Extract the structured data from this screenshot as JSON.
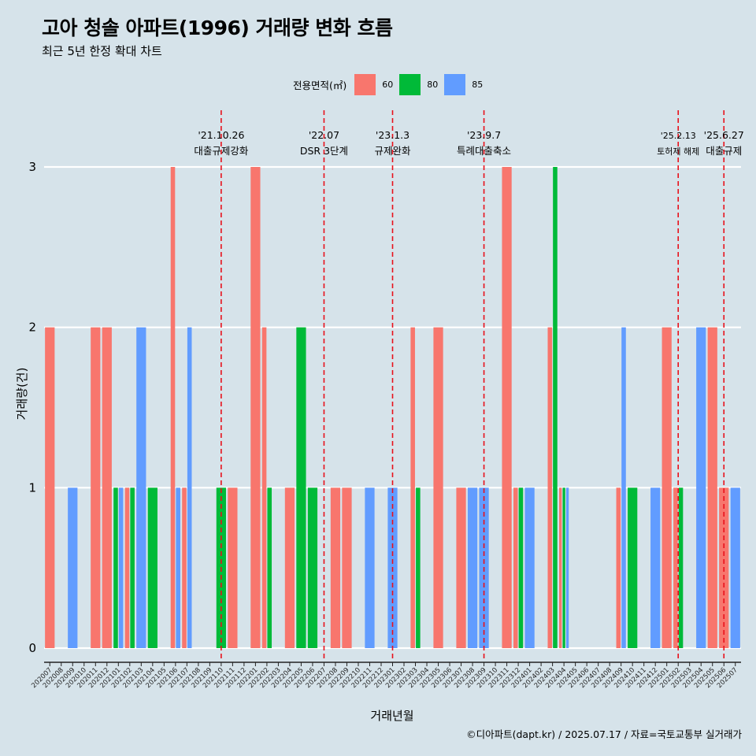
{
  "title": "고아 청솔 아파트(1996) 거래량 변화 흐름",
  "subtitle": "최근 5년 한정 확대 차트",
  "caption": "©디아파트(dapt.kr) / 2025.07.17 / 자료=국토교통부 실거래가",
  "legend": {
    "title": "전용면적(㎡)",
    "items": [
      {
        "label": "60",
        "color": "#f8766d"
      },
      {
        "label": "80",
        "color": "#00ba38"
      },
      {
        "label": "85",
        "color": "#619cff"
      }
    ]
  },
  "chart_data": {
    "type": "bar",
    "xlabel": "거래년월",
    "ylabel": "거래량(건)",
    "ylim": [
      0,
      3
    ],
    "yticks": [
      0,
      1,
      2,
      3
    ],
    "grid": true,
    "categories": [
      "202007",
      "202008",
      "202009",
      "202010",
      "202011",
      "202012",
      "202101",
      "202102",
      "202103",
      "202104",
      "202105",
      "202106",
      "202107",
      "202108",
      "202109",
      "202110",
      "202111",
      "202112",
      "202201",
      "202202",
      "202203",
      "202204",
      "202205",
      "202206",
      "202207",
      "202208",
      "202209",
      "202210",
      "202211",
      "202212",
      "202301",
      "202302",
      "202303",
      "202304",
      "202305",
      "202306",
      "202307",
      "202308",
      "202309",
      "202310",
      "202311",
      "202312",
      "202401",
      "202402",
      "202403",
      "202404",
      "202405",
      "202406",
      "202407",
      "202408",
      "202409",
      "202410",
      "202411",
      "202412",
      "202501",
      "202502",
      "202503",
      "202504",
      "202505",
      "202506",
      "202507"
    ],
    "series": [
      {
        "name": "60",
        "color": "#f8766d",
        "values": [
          2,
          0,
          0,
          0,
          2,
          2,
          0,
          1,
          0,
          0,
          0,
          3,
          1,
          0,
          0,
          0,
          1,
          0,
          3,
          2,
          0,
          1,
          0,
          0,
          0,
          1,
          1,
          0,
          0,
          0,
          0,
          0,
          2,
          0,
          2,
          0,
          1,
          0,
          0,
          0,
          3,
          1,
          0,
          0,
          2,
          1,
          0,
          0,
          0,
          0,
          1,
          0,
          0,
          0,
          2,
          1,
          0,
          0,
          2,
          1,
          0
        ]
      },
      {
        "name": "80",
        "color": "#00ba38",
        "values": [
          0,
          0,
          0,
          0,
          0,
          0,
          1,
          1,
          0,
          1,
          0,
          0,
          0,
          0,
          0,
          1,
          0,
          0,
          0,
          1,
          0,
          0,
          2,
          1,
          0,
          0,
          0,
          0,
          0,
          0,
          0,
          0,
          1,
          0,
          0,
          0,
          0,
          0,
          0,
          0,
          0,
          1,
          0,
          0,
          3,
          1,
          0,
          0,
          0,
          0,
          0,
          1,
          0,
          0,
          0,
          1,
          0,
          0,
          0,
          0,
          0
        ]
      },
      {
        "name": "85",
        "color": "#619cff",
        "values": [
          0,
          0,
          1,
          0,
          0,
          0,
          1,
          0,
          2,
          0,
          0,
          1,
          2,
          0,
          0,
          0,
          0,
          0,
          0,
          0,
          0,
          0,
          0,
          0,
          0,
          0,
          0,
          0,
          1,
          0,
          1,
          0,
          0,
          0,
          0,
          0,
          0,
          1,
          1,
          0,
          0,
          0,
          1,
          0,
          0,
          1,
          0,
          0,
          0,
          0,
          2,
          0,
          0,
          1,
          0,
          0,
          0,
          2,
          0,
          0,
          1
        ]
      }
    ],
    "annotations": [
      {
        "date": "'21.10.26",
        "label": "대출규제강화",
        "x": "202110"
      },
      {
        "date": "'22.07",
        "label": "DSR 3단계",
        "x": "202207"
      },
      {
        "date": "'23.1.3",
        "label": "규제완화",
        "x": "202301"
      },
      {
        "date": "'23.9.7",
        "label": "특례대출축소",
        "x": "202309"
      },
      {
        "date": "'25.2.13",
        "label": "토허제 해제",
        "x": "202502"
      },
      {
        "date": "'25.6.27",
        "label": "대출규제",
        "x": "202506"
      }
    ]
  }
}
